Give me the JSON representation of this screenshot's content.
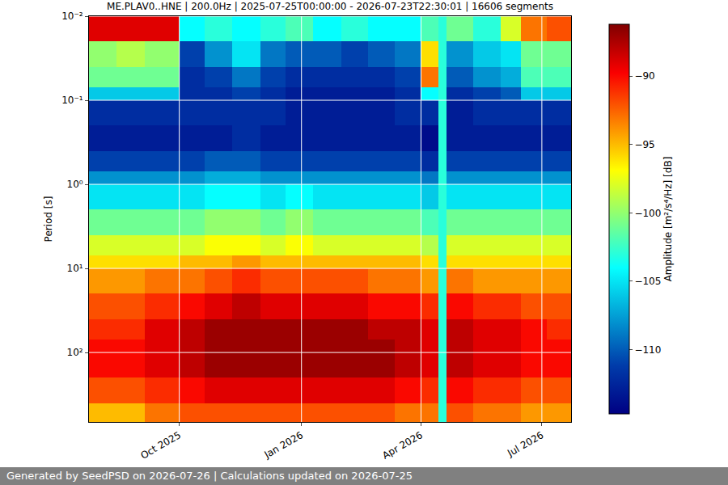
{
  "chart_data": {
    "type": "heatmap",
    "title": "ME.PLAV0..HNE | 200.0Hz | 2025-07-25T00:00:00 - 2026-07-23T22:30:01 | 16606 segments",
    "ylabel": "Period [s]",
    "colorbar_label": "Amplitude [m²/s⁴/Hz] [dB]",
    "annotations": [
      "Generated by SeedPSD on 2026-07-26 | Calculations updated on 2026-07-25"
    ],
    "log": "y",
    "grid": true,
    "color": "Jet",
    "xlim": [
      "2025-07-25",
      "2026-07-23"
    ],
    "xticks": [
      {
        "value": "2025-10-01",
        "label": "Oct 2025"
      },
      {
        "value": "2026-01-01",
        "label": "Jan 2026"
      },
      {
        "value": "2026-04-01",
        "label": "Apr 2026"
      },
      {
        "value": "2026-07-01",
        "label": "Jul 2026"
      }
    ],
    "ylim": [
      0.01,
      670
    ],
    "yticks": [
      {
        "value": 0.01,
        "label": "10⁻²"
      },
      {
        "value": 0.1,
        "label": "10⁻¹"
      },
      {
        "value": 1,
        "label": "10⁰"
      },
      {
        "value": 10,
        "label": "10¹"
      },
      {
        "value": 100,
        "label": "10²"
      }
    ],
    "zlim": [
      -114.7,
      -86.2
    ],
    "zticks": [
      {
        "value": -90,
        "label": "−90"
      },
      {
        "value": -95,
        "label": "−95"
      },
      {
        "value": -100,
        "label": "−100"
      },
      {
        "value": -105,
        "label": "−105"
      },
      {
        "value": -110,
        "label": "−110"
      }
    ],
    "x_edges": [
      "2025-07-25",
      "2025-08-15",
      "2025-09-05",
      "2025-10-01",
      "2025-10-20",
      "2025-11-10",
      "2025-12-01",
      "2025-12-20",
      "2026-01-10",
      "2026-01-31",
      "2026-02-20",
      "2026-03-12",
      "2026-04-01",
      "2026-04-14",
      "2026-04-20",
      "2026-05-10",
      "2026-05-31",
      "2026-06-15",
      "2026-07-05",
      "2026-07-23"
    ],
    "y_edges": [
      0.01,
      0.02,
      0.04,
      0.07,
      0.1,
      0.2,
      0.4,
      0.7,
      1,
      2,
      4,
      7,
      10,
      20,
      40,
      70,
      100,
      200,
      400,
      670
    ],
    "z": [
      [
        -89,
        -89,
        -89,
        -104,
        -103,
        -104,
        -103,
        -102,
        -104,
        -103,
        -104,
        -104,
        -102,
        -103,
        -101,
        -103,
        -98,
        -93,
        -92
      ],
      [
        -100,
        -99,
        -100,
        -111,
        -108,
        -105,
        -109,
        -110,
        -110,
        -111,
        -110,
        -109,
        -96,
        -103,
        -108,
        -106,
        -105,
        -101,
        -101
      ],
      [
        -101,
        -101,
        -101,
        -112,
        -111,
        -109,
        -111,
        -112,
        -112,
        -112,
        -112,
        -111,
        -93,
        -103,
        -110,
        -108,
        -107,
        -102,
        -102
      ],
      [
        -106,
        -106,
        -106,
        -112,
        -112,
        -111,
        -112,
        -113,
        -113,
        -113,
        -113,
        -112,
        -104,
        -103,
        -112,
        -111,
        -110,
        -106,
        -106
      ],
      [
        -112,
        -112,
        -112,
        -112,
        -112,
        -112,
        -112,
        -113,
        -113,
        -113,
        -113,
        -112,
        -112,
        -103,
        -113,
        -112,
        -112,
        -112,
        -112
      ],
      [
        -113,
        -113,
        -113,
        -113,
        -113,
        -112,
        -113,
        -113,
        -113,
        -113,
        -113,
        -113,
        -114,
        -103,
        -113,
        -113,
        -113,
        -113,
        -113
      ],
      [
        -111,
        -111,
        -111,
        -111,
        -110,
        -110,
        -111,
        -111,
        -111,
        -111,
        -111,
        -111,
        -112,
        -103,
        -111,
        -111,
        -111,
        -111,
        -111
      ],
      [
        -108,
        -108,
        -108,
        -108,
        -107,
        -107,
        -108,
        -108,
        -108,
        -108,
        -108,
        -108,
        -109,
        -103,
        -108,
        -108,
        -108,
        -108,
        -108
      ],
      [
        -105,
        -105,
        -105,
        -105,
        -104,
        -104,
        -105,
        -104,
        -105,
        -105,
        -105,
        -105,
        -106,
        -103,
        -105,
        -105,
        -105,
        -105,
        -105
      ],
      [
        -101,
        -101,
        -101,
        -101,
        -100,
        -100,
        -101,
        -100,
        -101,
        -101,
        -101,
        -101,
        -102,
        -103,
        -101,
        -101,
        -101,
        -101,
        -101
      ],
      [
        -98,
        -98,
        -98,
        -98,
        -97,
        -97,
        -98,
        -97,
        -98,
        -98,
        -98,
        -98,
        -99,
        -103,
        -98,
        -98,
        -98,
        -98,
        -98
      ],
      [
        -96,
        -96,
        -96,
        -95,
        -95,
        -94,
        -95,
        -95,
        -95,
        -95,
        -95,
        -95,
        -96,
        -103,
        -96,
        -96,
        -96,
        -96,
        -96
      ],
      [
        -94,
        -94,
        -93,
        -93,
        -92,
        -91,
        -92,
        -92,
        -92,
        -92,
        -93,
        -93,
        -94,
        -103,
        -93,
        -94,
        -94,
        -94,
        -94
      ],
      [
        -92,
        -92,
        -91,
        -90,
        -89,
        -88,
        -89,
        -89,
        -89,
        -89,
        -90,
        -90,
        -91,
        -103,
        -90,
        -91,
        -91,
        -92,
        -92
      ],
      [
        -91,
        -91,
        -89,
        -88,
        -87,
        -87,
        -87,
        -87,
        -87,
        -87,
        -88,
        -88,
        -89,
        -103,
        -88,
        -89,
        -89,
        -90,
        -91
      ],
      [
        -90,
        -90,
        -89,
        -88,
        -87,
        -87,
        -87,
        -87,
        -87,
        -87,
        -87,
        -88,
        -89,
        -103,
        -88,
        -89,
        -89,
        -90,
        -90
      ],
      [
        -90,
        -90,
        -89,
        -88,
        -87,
        -87,
        -87,
        -87,
        -87,
        -87,
        -87,
        -88,
        -89,
        -103,
        -88,
        -89,
        -89,
        -90,
        -90
      ],
      [
        -92,
        -92,
        -91,
        -90,
        -89,
        -89,
        -89,
        -89,
        -89,
        -89,
        -89,
        -90,
        -91,
        -103,
        -90,
        -91,
        -91,
        -92,
        -92
      ],
      [
        -95,
        -95,
        -93,
        -92,
        -92,
        -92,
        -92,
        -92,
        -92,
        -92,
        -92,
        -93,
        -93,
        -103,
        -92,
        -93,
        -93,
        -94,
        -94
      ]
    ]
  }
}
